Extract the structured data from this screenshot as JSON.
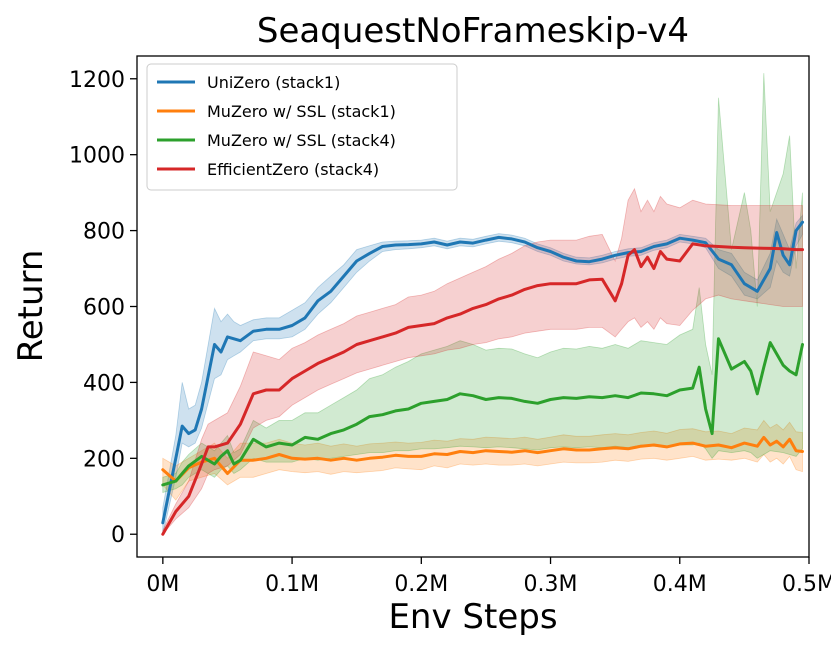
{
  "chart_data": {
    "type": "line",
    "title": "SeaquestNoFrameskip-v4",
    "xlabel": "Env Steps",
    "ylabel": "Return",
    "xlim": [
      -0.02,
      0.5
    ],
    "ylim": [
      -60,
      1260
    ],
    "x_unit": "M",
    "x_ticks": [
      0,
      0.1,
      0.2,
      0.3,
      0.4,
      0.5
    ],
    "x_tick_labels": [
      "0M",
      "0.1M",
      "0.2M",
      "0.3M",
      "0.4M",
      "0.5M"
    ],
    "y_ticks": [
      0,
      200,
      400,
      600,
      800,
      1000,
      1200
    ],
    "y_tick_labels": [
      "0",
      "200",
      "400",
      "600",
      "800",
      "1000",
      "1200"
    ],
    "grid": false,
    "legend_position": "top-left",
    "series": [
      {
        "name": "UniZero (stack1)",
        "color": "#1f77b4",
        "x": [
          0,
          0.01,
          0.015,
          0.02,
          0.025,
          0.03,
          0.04,
          0.045,
          0.05,
          0.055,
          0.06,
          0.07,
          0.08,
          0.09,
          0.1,
          0.11,
          0.12,
          0.13,
          0.14,
          0.15,
          0.16,
          0.17,
          0.18,
          0.19,
          0.2,
          0.21,
          0.22,
          0.23,
          0.24,
          0.25,
          0.26,
          0.27,
          0.28,
          0.29,
          0.3,
          0.31,
          0.32,
          0.33,
          0.34,
          0.35,
          0.36,
          0.37,
          0.38,
          0.39,
          0.4,
          0.41,
          0.42,
          0.43,
          0.44,
          0.45,
          0.46,
          0.47,
          0.475,
          0.48,
          0.485,
          0.49,
          0.495
        ],
        "y": [
          30,
          200,
          285,
          265,
          275,
          330,
          500,
          480,
          520,
          515,
          510,
          535,
          540,
          540,
          550,
          570,
          615,
          640,
          680,
          720,
          740,
          758,
          762,
          763,
          765,
          770,
          762,
          770,
          767,
          775,
          782,
          778,
          770,
          755,
          745,
          730,
          720,
          718,
          725,
          735,
          742,
          745,
          758,
          765,
          780,
          775,
          768,
          725,
          710,
          660,
          640,
          700,
          795,
          735,
          710,
          800,
          822
        ],
        "band_low": [
          0,
          150,
          240,
          230,
          240,
          280,
          410,
          420,
          460,
          470,
          480,
          510,
          515,
          515,
          520,
          540,
          580,
          610,
          650,
          690,
          720,
          745,
          750,
          752,
          755,
          760,
          752,
          760,
          757,
          765,
          772,
          768,
          760,
          745,
          735,
          720,
          712,
          710,
          715,
          725,
          732,
          735,
          748,
          755,
          770,
          765,
          755,
          700,
          680,
          630,
          620,
          650,
          720,
          690,
          680,
          760,
          790
        ],
        "band_high": [
          70,
          260,
          400,
          330,
          340,
          400,
          595,
          560,
          580,
          560,
          550,
          565,
          570,
          570,
          590,
          610,
          650,
          680,
          710,
          750,
          760,
          770,
          772,
          773,
          775,
          780,
          772,
          780,
          777,
          785,
          792,
          788,
          780,
          765,
          755,
          740,
          730,
          728,
          735,
          745,
          752,
          755,
          768,
          775,
          790,
          785,
          780,
          750,
          740,
          690,
          670,
          740,
          830,
          790,
          750,
          820,
          840
        ]
      },
      {
        "name": "MuZero w/ SSL (stack1)",
        "color": "#ff7f0e",
        "x": [
          0,
          0.01,
          0.02,
          0.03,
          0.04,
          0.05,
          0.06,
          0.07,
          0.08,
          0.09,
          0.1,
          0.11,
          0.12,
          0.13,
          0.14,
          0.15,
          0.16,
          0.17,
          0.18,
          0.19,
          0.2,
          0.21,
          0.22,
          0.23,
          0.24,
          0.25,
          0.26,
          0.27,
          0.28,
          0.29,
          0.3,
          0.31,
          0.32,
          0.33,
          0.34,
          0.35,
          0.36,
          0.37,
          0.38,
          0.39,
          0.4,
          0.41,
          0.42,
          0.43,
          0.44,
          0.45,
          0.46,
          0.465,
          0.47,
          0.475,
          0.48,
          0.485,
          0.49,
          0.495
        ],
        "y": [
          170,
          140,
          175,
          190,
          200,
          160,
          195,
          195,
          200,
          210,
          200,
          198,
          200,
          195,
          200,
          195,
          200,
          203,
          208,
          205,
          205,
          212,
          210,
          218,
          215,
          220,
          218,
          216,
          220,
          215,
          220,
          225,
          222,
          222,
          225,
          228,
          225,
          232,
          235,
          230,
          238,
          240,
          232,
          235,
          228,
          240,
          232,
          255,
          235,
          245,
          230,
          250,
          220,
          218
        ],
        "band_low": [
          130,
          90,
          140,
          150,
          160,
          130,
          150,
          150,
          160,
          170,
          165,
          162,
          165,
          158,
          165,
          162,
          165,
          168,
          175,
          172,
          170,
          180,
          175,
          185,
          182,
          185,
          182,
          182,
          185,
          180,
          185,
          190,
          188,
          188,
          190,
          195,
          192,
          198,
          200,
          195,
          200,
          205,
          195,
          198,
          195,
          200,
          190,
          210,
          190,
          200,
          185,
          205,
          170,
          165
        ],
        "band_high": [
          200,
          180,
          200,
          220,
          240,
          200,
          240,
          240,
          240,
          250,
          240,
          235,
          240,
          232,
          238,
          232,
          238,
          240,
          243,
          240,
          242,
          248,
          245,
          252,
          250,
          256,
          254,
          252,
          256,
          250,
          256,
          262,
          258,
          258,
          262,
          265,
          262,
          268,
          272,
          266,
          276,
          278,
          270,
          272,
          265,
          280,
          275,
          300,
          280,
          290,
          275,
          295,
          270,
          268
        ]
      },
      {
        "name": "MuZero w/ SSL (stack4)",
        "color": "#2ca02c",
        "x": [
          0,
          0.01,
          0.015,
          0.02,
          0.03,
          0.04,
          0.045,
          0.05,
          0.055,
          0.06,
          0.07,
          0.08,
          0.09,
          0.1,
          0.11,
          0.12,
          0.13,
          0.14,
          0.15,
          0.16,
          0.17,
          0.18,
          0.19,
          0.2,
          0.21,
          0.22,
          0.23,
          0.24,
          0.25,
          0.26,
          0.27,
          0.28,
          0.29,
          0.3,
          0.31,
          0.32,
          0.33,
          0.34,
          0.35,
          0.36,
          0.37,
          0.38,
          0.39,
          0.4,
          0.41,
          0.415,
          0.42,
          0.425,
          0.43,
          0.44,
          0.45,
          0.455,
          0.46,
          0.465,
          0.47,
          0.48,
          0.485,
          0.49,
          0.495
        ],
        "y": [
          130,
          140,
          160,
          180,
          205,
          185,
          205,
          220,
          185,
          195,
          250,
          230,
          240,
          235,
          255,
          250,
          265,
          275,
          290,
          310,
          315,
          325,
          330,
          345,
          350,
          355,
          370,
          365,
          355,
          360,
          358,
          350,
          345,
          355,
          360,
          358,
          362,
          360,
          365,
          360,
          372,
          370,
          365,
          380,
          385,
          440,
          330,
          265,
          515,
          435,
          455,
          430,
          370,
          440,
          505,
          445,
          430,
          420,
          500
        ],
        "band_low": [
          110,
          120,
          130,
          150,
          170,
          150,
          170,
          180,
          160,
          170,
          200,
          190,
          190,
          190,
          200,
          195,
          200,
          205,
          210,
          215,
          215,
          220,
          220,
          225,
          225,
          228,
          232,
          230,
          228,
          230,
          228,
          225,
          222,
          228,
          230,
          228,
          230,
          228,
          232,
          228,
          235,
          232,
          228,
          235,
          235,
          240,
          225,
          200,
          220,
          215,
          220,
          215,
          200,
          210,
          220,
          215,
          210,
          205,
          225
        ],
        "band_high": [
          150,
          160,
          190,
          210,
          240,
          220,
          240,
          260,
          215,
          225,
          300,
          280,
          300,
          300,
          320,
          320,
          340,
          360,
          380,
          410,
          420,
          440,
          455,
          475,
          485,
          495,
          510,
          500,
          485,
          490,
          488,
          475,
          465,
          480,
          490,
          488,
          495,
          490,
          500,
          490,
          510,
          505,
          500,
          525,
          540,
          650,
          500,
          420,
          1150,
          750,
          900,
          800,
          600,
          1215,
          850,
          950,
          1050,
          700,
          900
        ]
      },
      {
        "name": "EfficientZero (stack4)",
        "color": "#d62728",
        "x": [
          0,
          0.01,
          0.02,
          0.03,
          0.035,
          0.04,
          0.05,
          0.06,
          0.07,
          0.08,
          0.09,
          0.1,
          0.11,
          0.12,
          0.13,
          0.14,
          0.15,
          0.16,
          0.17,
          0.18,
          0.19,
          0.2,
          0.21,
          0.22,
          0.23,
          0.24,
          0.25,
          0.26,
          0.27,
          0.28,
          0.29,
          0.3,
          0.31,
          0.32,
          0.33,
          0.34,
          0.35,
          0.355,
          0.36,
          0.365,
          0.37,
          0.375,
          0.38,
          0.385,
          0.39,
          0.4,
          0.41,
          0.42,
          0.43,
          0.44,
          0.45,
          0.46,
          0.47,
          0.48,
          0.49,
          0.495
        ],
        "y": [
          0,
          60,
          100,
          185,
          230,
          230,
          240,
          290,
          370,
          380,
          380,
          410,
          430,
          450,
          465,
          480,
          500,
          510,
          520,
          530,
          545,
          550,
          555,
          570,
          580,
          595,
          605,
          620,
          630,
          645,
          655,
          660,
          660,
          660,
          670,
          672,
          615,
          660,
          735,
          750,
          705,
          730,
          700,
          745,
          725,
          720,
          765,
          760,
          758,
          756,
          755,
          754,
          753,
          752,
          750,
          750
        ],
        "band_low": [
          0,
          40,
          70,
          120,
          160,
          170,
          180,
          210,
          280,
          300,
          310,
          340,
          360,
          380,
          395,
          410,
          425,
          435,
          445,
          455,
          465,
          470,
          475,
          485,
          490,
          500,
          505,
          515,
          520,
          530,
          535,
          540,
          540,
          540,
          545,
          545,
          520,
          540,
          560,
          570,
          545,
          560,
          540,
          570,
          555,
          550,
          590,
          620,
          630,
          620,
          615,
          610,
          605,
          600,
          600,
          600
        ],
        "band_high": [
          10,
          80,
          140,
          250,
          290,
          300,
          320,
          390,
          480,
          470,
          460,
          490,
          505,
          525,
          540,
          555,
          575,
          585,
          595,
          605,
          625,
          630,
          640,
          660,
          675,
          690,
          705,
          725,
          740,
          760,
          770,
          775,
          775,
          775,
          785,
          790,
          720,
          780,
          880,
          910,
          850,
          880,
          850,
          890,
          870,
          860,
          880,
          870,
          868,
          866,
          866,
          866,
          866,
          866,
          866,
          866
        ]
      }
    ]
  }
}
